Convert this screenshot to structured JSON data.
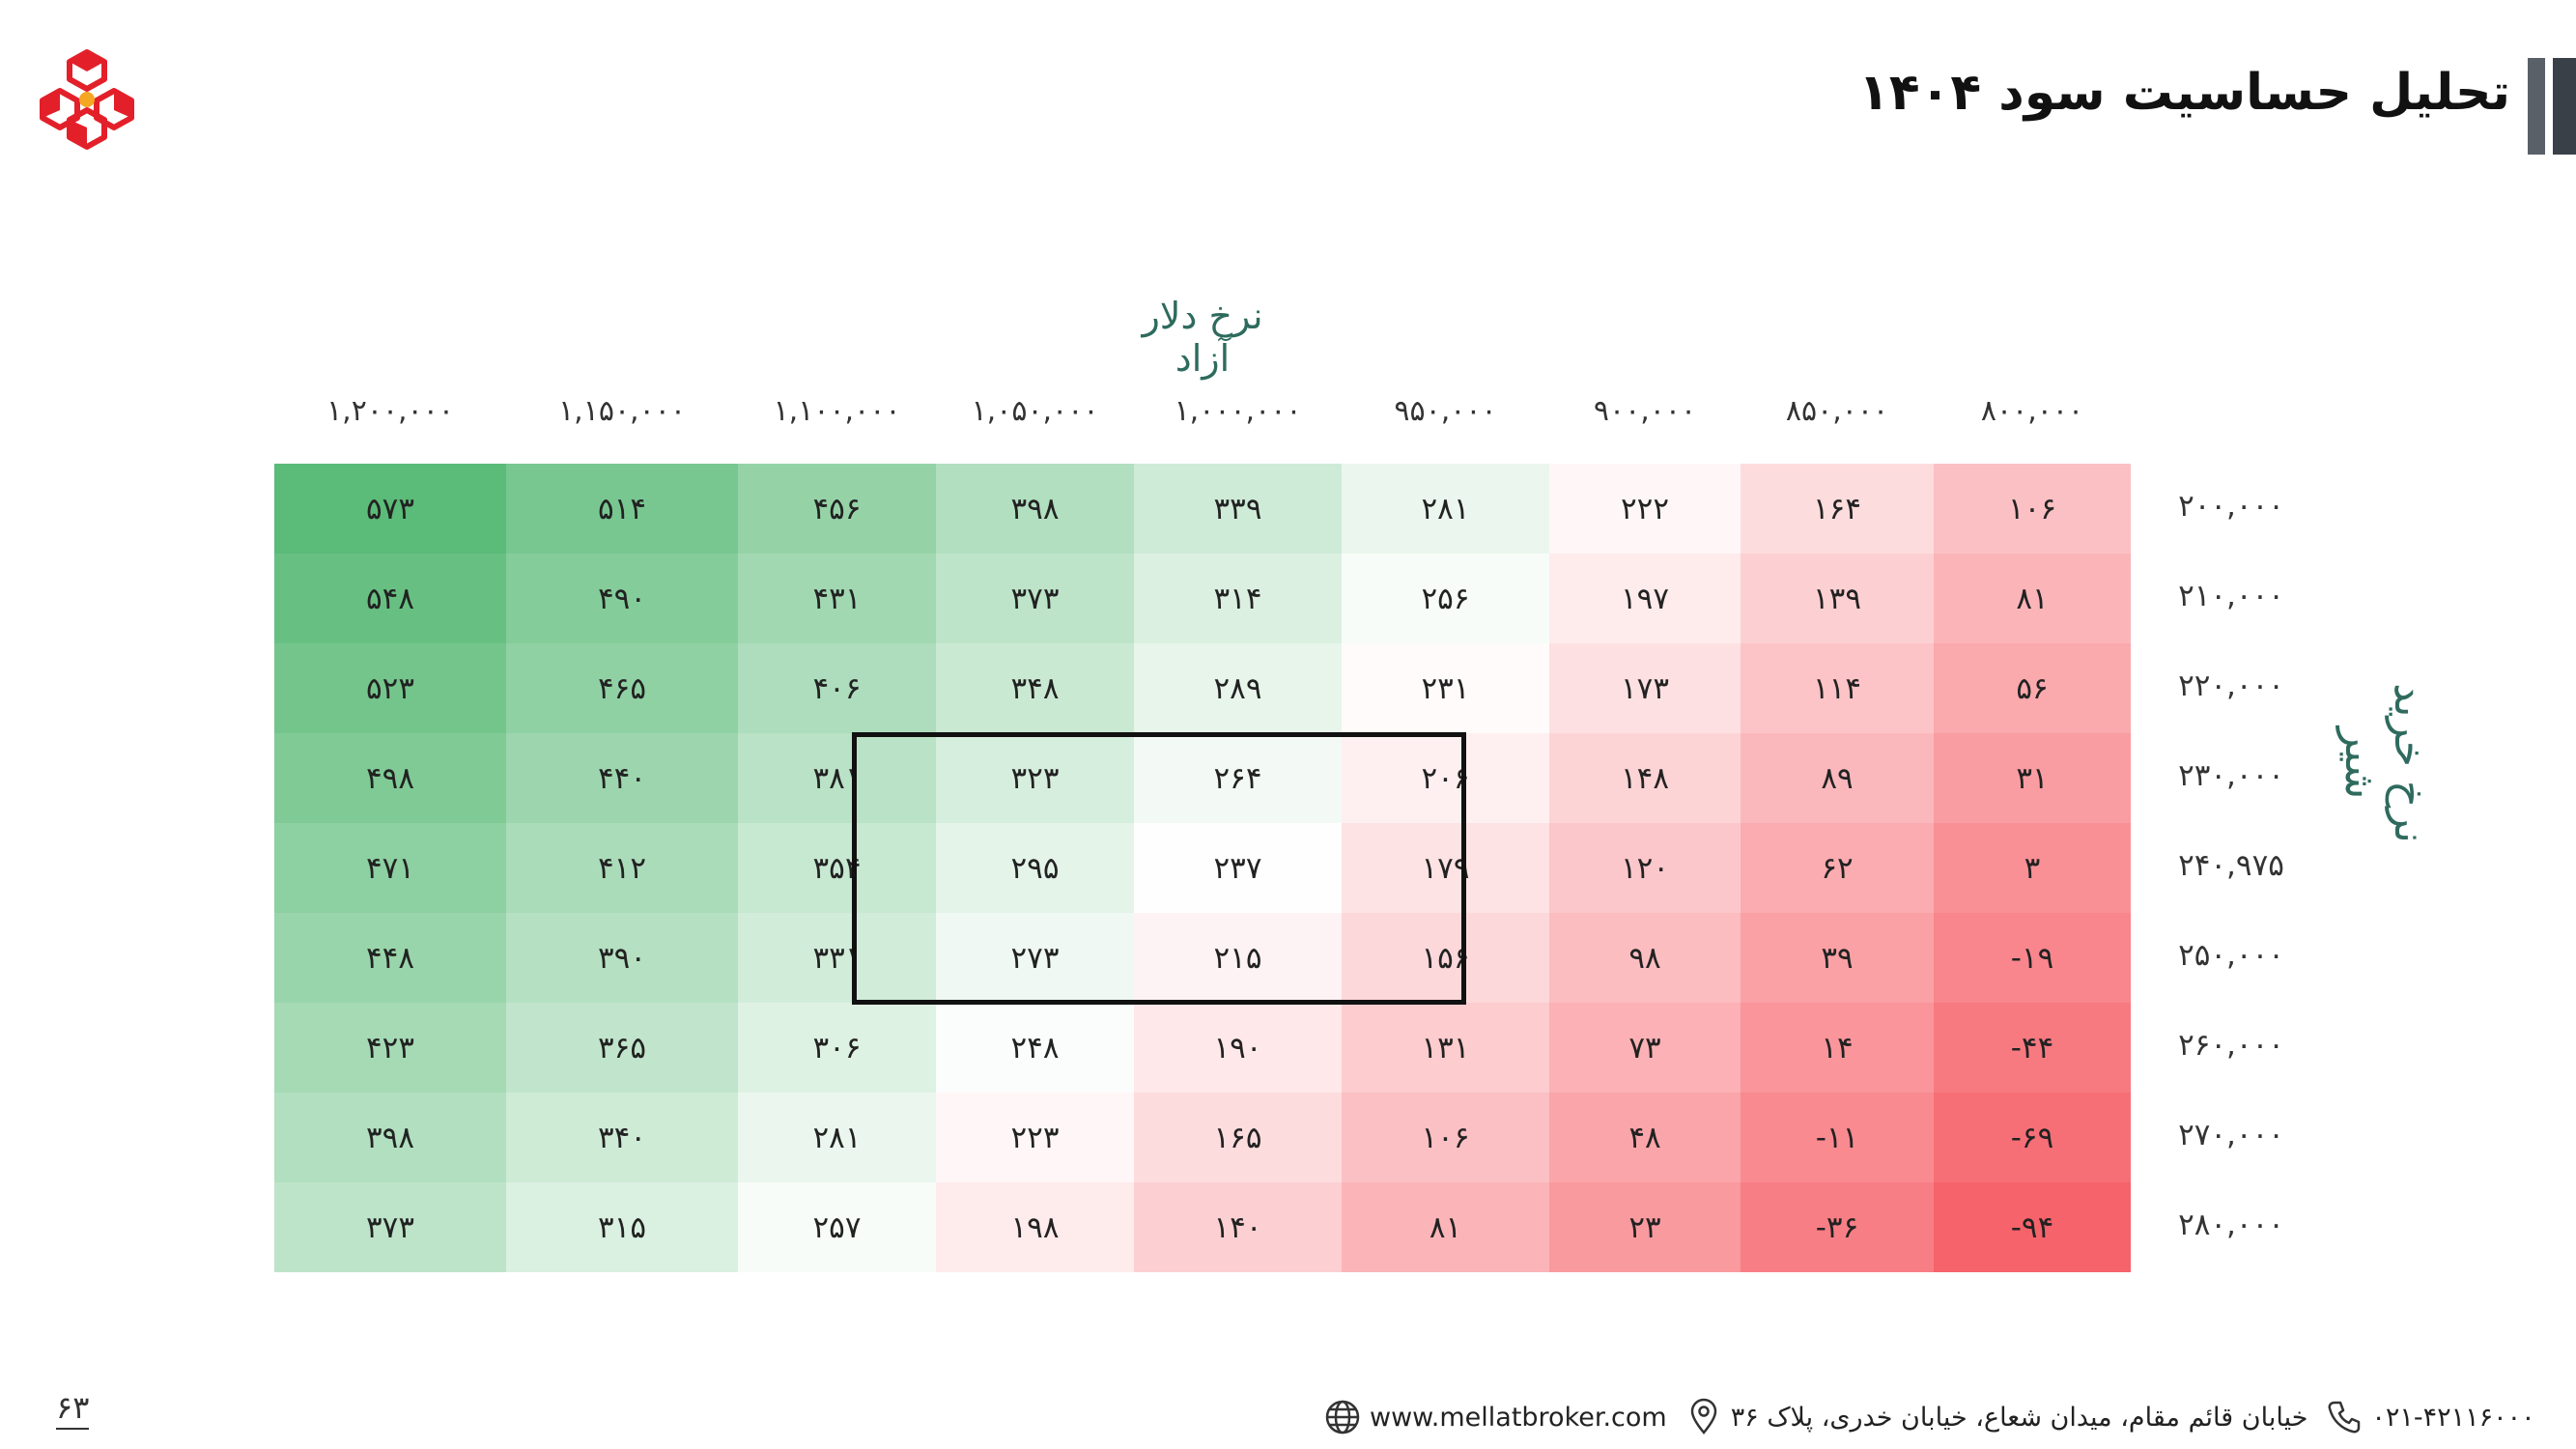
{
  "header": {
    "title": "تحلیل حساسیت سود ۱۴۰۴"
  },
  "table": {
    "col_axis_title": "نرخ دلار آزاد",
    "row_axis_title": "نرخ خرید شیر",
    "columns": [
      "۸۰۰,۰۰۰",
      "۸۵۰,۰۰۰",
      "۹۰۰,۰۰۰",
      "۹۵۰,۰۰۰",
      "۱,۰۰۰,۰۰۰",
      "۱,۰۵۰,۰۰۰",
      "۱,۱۰۰,۰۰۰",
      "۱,۱۵۰,۰۰۰",
      "۱,۲۰۰,۰۰۰"
    ],
    "rows": [
      {
        "label": "۲۰۰,۰۰۰",
        "cells": [
          "۱۰۶",
          "۱۶۴",
          "۲۲۲",
          "۲۸۱",
          "۳۳۹",
          "۳۹۸",
          "۴۵۶",
          "۵۱۴",
          "۵۷۳"
        ],
        "values": [
          106,
          164,
          222,
          281,
          339,
          398,
          456,
          514,
          573
        ]
      },
      {
        "label": "۲۱۰,۰۰۰",
        "cells": [
          "۸۱",
          "۱۳۹",
          "۱۹۷",
          "۲۵۶",
          "۳۱۴",
          "۳۷۳",
          "۴۳۱",
          "۴۹۰",
          "۵۴۸"
        ],
        "values": [
          81,
          139,
          197,
          256,
          314,
          373,
          431,
          490,
          548
        ]
      },
      {
        "label": "۲۲۰,۰۰۰",
        "cells": [
          "۵۶",
          "۱۱۴",
          "۱۷۳",
          "۲۳۱",
          "۲۸۹",
          "۳۴۸",
          "۴۰۶",
          "۴۶۵",
          "۵۲۳"
        ],
        "values": [
          56,
          114,
          173,
          231,
          289,
          348,
          406,
          465,
          523
        ]
      },
      {
        "label": "۲۳۰,۰۰۰",
        "cells": [
          "۳۱",
          "۸۹",
          "۱۴۸",
          "۲۰۶",
          "۲۶۴",
          "۳۲۳",
          "۳۸۱",
          "۴۴۰",
          "۴۹۸"
        ],
        "values": [
          31,
          89,
          148,
          206,
          264,
          323,
          381,
          440,
          498
        ]
      },
      {
        "label": "۲۴۰,۹۷۵",
        "cells": [
          "۳",
          "۶۲",
          "۱۲۰",
          "۱۷۹",
          "۲۳۷",
          "۲۹۵",
          "۳۵۴",
          "۴۱۲",
          "۴۷۱"
        ],
        "values": [
          3,
          62,
          120,
          179,
          237,
          295,
          354,
          412,
          471
        ]
      },
      {
        "label": "۲۵۰,۰۰۰",
        "cells": [
          "-۱۹",
          "۳۹",
          "۹۸",
          "۱۵۶",
          "۲۱۵",
          "۲۷۳",
          "۳۳۱",
          "۳۹۰",
          "۴۴۸"
        ],
        "values": [
          -19,
          39,
          98,
          156,
          215,
          273,
          331,
          390,
          448
        ]
      },
      {
        "label": "۲۶۰,۰۰۰",
        "cells": [
          "-۴۴",
          "۱۴",
          "۷۳",
          "۱۳۱",
          "۱۹۰",
          "۲۴۸",
          "۳۰۶",
          "۳۶۵",
          "۴۲۳"
        ],
        "values": [
          -44,
          14,
          73,
          131,
          190,
          248,
          306,
          365,
          423
        ]
      },
      {
        "label": "۲۷۰,۰۰۰",
        "cells": [
          "-۶۹",
          "-۱۱",
          "۴۸",
          "۱۰۶",
          "۱۶۵",
          "۲۲۳",
          "۲۸۱",
          "۳۴۰",
          "۳۹۸"
        ],
        "values": [
          -69,
          -11,
          48,
          106,
          165,
          223,
          281,
          340,
          398
        ]
      },
      {
        "label": "۲۸۰,۰۰۰",
        "cells": [
          "-۹۴",
          "-۳۶",
          "۲۳",
          "۸۱",
          "۱۴۰",
          "۱۹۸",
          "۲۵۷",
          "۳۱۵",
          "۳۷۳"
        ],
        "values": [
          -94,
          -36,
          23,
          81,
          140,
          198,
          257,
          315,
          373
        ]
      }
    ]
  },
  "colors": {
    "high": "#5bbb78",
    "mid": "#ffffff",
    "low": "#f6636b",
    "axis_title": "#2e6b5e",
    "logo_red": "#e3202a"
  },
  "footer": {
    "phone": "۰۲۱-۴۲۱۱۶۰۰۰",
    "address": "خیابان قائم مقام، میدان شعاع، خیابان خدری، پلاک ۳۶",
    "website": "www.mellatbroker.com"
  },
  "page_number": "۶۳"
}
